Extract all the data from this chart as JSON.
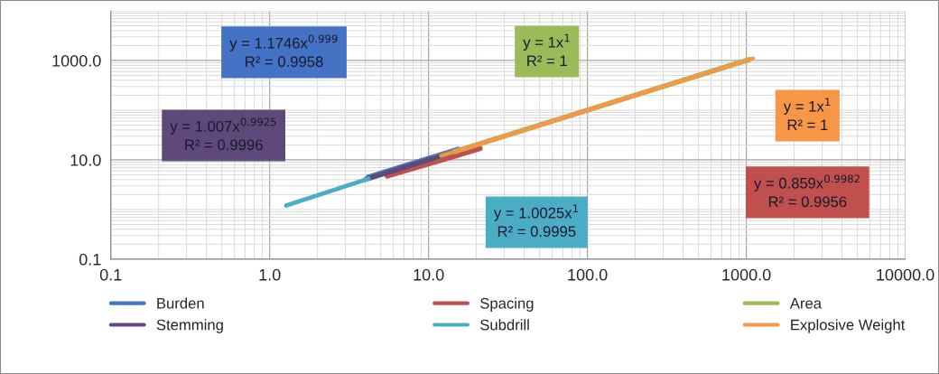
{
  "chart_data": {
    "type": "line",
    "log": "xy",
    "grid": true,
    "legend": "bottom",
    "marker": "none",
    "line_style": "solid",
    "xlim": [
      0.1,
      10000
    ],
    "xticks": [
      {
        "value": 0.1,
        "label": "0.1"
      },
      {
        "value": 1,
        "label": "1.0"
      },
      {
        "value": 10,
        "label": "10.0"
      },
      {
        "value": 100,
        "label": "100.0"
      },
      {
        "value": 1000,
        "label": "1000.0"
      },
      {
        "value": 10000,
        "label": "10000.0"
      }
    ],
    "ylim": [
      0.1,
      10000
    ],
    "yticks": [
      {
        "value": 0.1,
        "label": "0.1"
      },
      {
        "value": 10,
        "label": "10.0"
      },
      {
        "value": 1000,
        "label": "1000.0"
      }
    ],
    "series": [
      {
        "name": "Burden",
        "color": "#4472c4",
        "x": [
          4.2,
          15.4
        ],
        "values": [
          4.4,
          16
        ]
      },
      {
        "name": "Spacing",
        "color": "#c0504d",
        "x": [
          5.5,
          21
        ],
        "values": [
          4.8,
          17
        ]
      },
      {
        "name": "Area",
        "color": "#9bbb59",
        "x": [
          10.7,
          1040
        ],
        "values": [
          10.7,
          1040
        ]
      },
      {
        "name": "Stemming",
        "color": "#5f497a",
        "x": [
          4,
          14
        ],
        "values": [
          4,
          14
        ]
      },
      {
        "name": "Subdrill",
        "color": "#4bacc6",
        "x": [
          1.27,
          4.2
        ],
        "values": [
          1.2,
          4.2
        ]
      },
      {
        "name": "Explosive Weight",
        "color": "#f79646",
        "x": [
          12,
          1100
        ],
        "values": [
          12,
          1100
        ]
      }
    ],
    "annotations": [
      "y = 1.1746x$^{0.999}$\nR² = 0.9958",
      "y = 1.007x$^{0.9925}$\nR² = 0.9996",
      "y = 1x$^{1}$\nR² = 1",
      "y = 1.0025x$^{1}$\nR² = 0.9995",
      "y = 1x$^{1}$\nR² = 1",
      "y = 0.859x$^{0.9982}$\nR² = 0.9956"
    ]
  }
}
